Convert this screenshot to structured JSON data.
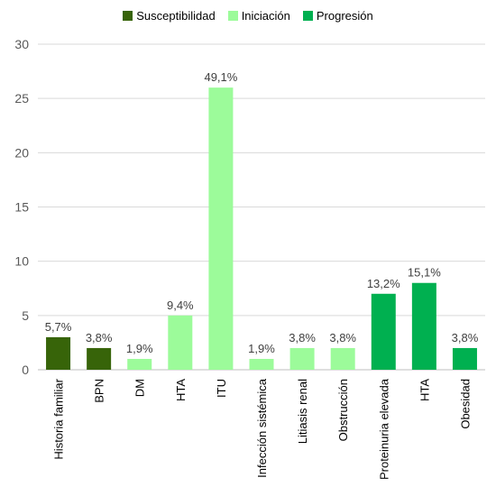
{
  "chart_data": {
    "type": "bar",
    "categories": [
      "Historia familiar",
      "BPN",
      "DM",
      "HTA",
      "ITU",
      "Infección sistémica",
      "Litiasis renal",
      "Obstrucción",
      "Proteinuria elevada",
      "HTA",
      "Obesidad"
    ],
    "values": [
      3,
      2,
      1,
      5,
      26,
      1,
      2,
      2,
      7,
      8,
      2
    ],
    "data_labels": [
      "5,7%",
      "3,8%",
      "1,9%",
      "9,4%",
      "49,1%",
      "1,9%",
      "3,8%",
      "3,8%",
      "13,2%",
      "15,1%",
      "3,8%"
    ],
    "groups": [
      0,
      0,
      1,
      1,
      1,
      1,
      1,
      1,
      2,
      2,
      2
    ],
    "series": [
      {
        "name": "Susceptibilidad",
        "color": "#376409"
      },
      {
        "name": "Iniciación",
        "color": "#9CFB9A"
      },
      {
        "name": "Progresión",
        "color": "#00B050"
      }
    ],
    "ylim": [
      0,
      30
    ],
    "yticks": [
      "0",
      "5",
      "10",
      "15",
      "20",
      "25",
      "30"
    ],
    "grid": true,
    "legend_position": "top"
  }
}
